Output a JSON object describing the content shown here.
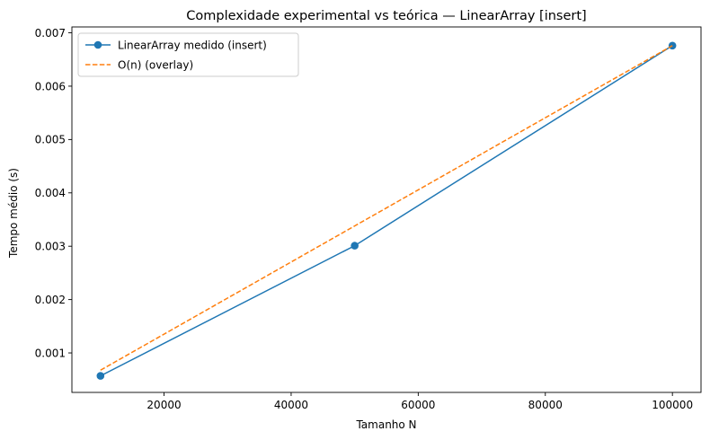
{
  "chart_data": {
    "type": "line",
    "title": "Complexidade experimental vs teórica — LinearArray [insert]",
    "xlabel": "Tamanho N",
    "ylabel": "Tempo médio (s)",
    "xlim": [
      5500,
      104500
    ],
    "ylim": [
      0.00026,
      0.00711
    ],
    "xticks": [
      20000,
      40000,
      60000,
      80000,
      100000
    ],
    "xtick_labels": [
      "20000",
      "40000",
      "60000",
      "80000",
      "100000"
    ],
    "yticks": [
      0.001,
      0.002,
      0.003,
      0.004,
      0.005,
      0.006,
      0.007
    ],
    "ytick_labels": [
      "0.001",
      "0.002",
      "0.003",
      "0.004",
      "0.005",
      "0.006",
      "0.007"
    ],
    "grid": false,
    "legend_position": "upper-left",
    "series": [
      {
        "name": "LinearArray medido (insert)",
        "style": "solid-with-markers",
        "color": "#1f77b4",
        "x": [
          10000,
          50000,
          100000
        ],
        "y": [
          0.00057,
          0.00301,
          0.00676
        ]
      },
      {
        "name": "O(n) (overlay)",
        "style": "dashed",
        "color": "#ff7f0e",
        "x": [
          10000,
          50000,
          100000
        ],
        "y": [
          0.000676,
          0.00338,
          0.00676
        ]
      }
    ]
  }
}
